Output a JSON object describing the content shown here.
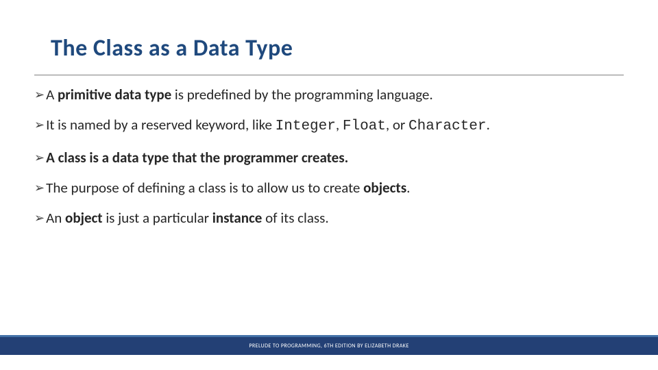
{
  "slide": {
    "title": "The Class as a Data Type",
    "title_color": "#1f497d",
    "title_fontsize": 34,
    "rule_color": "#7f7f7f",
    "body_fontsize": 21,
    "body_color": "#262626",
    "bullet_glyph": "➢",
    "bullets": [
      {
        "runs": [
          {
            "t": "A ",
            "b": false,
            "mono": false
          },
          {
            "t": "primitive data type",
            "b": true,
            "mono": false
          },
          {
            "t": " is predefined by the programming language.",
            "b": false,
            "mono": false
          }
        ]
      },
      {
        "runs": [
          {
            "t": "It is named by a reserved keyword, like ",
            "b": false,
            "mono": false
          },
          {
            "t": "Integer",
            "b": false,
            "mono": true
          },
          {
            "t": ", ",
            "b": false,
            "mono": false
          },
          {
            "t": "Float",
            "b": false,
            "mono": true
          },
          {
            "t": ", or ",
            "b": false,
            "mono": false
          },
          {
            "t": "Character",
            "b": false,
            "mono": true
          },
          {
            "t": ".",
            "b": false,
            "mono": false
          }
        ]
      },
      {
        "runs": [
          {
            "t": "A class is a data type that the programmer creates.",
            "b": true,
            "mono": false
          }
        ]
      },
      {
        "runs": [
          {
            "t": "The purpose of defining a class is to allow us to create ",
            "b": false,
            "mono": false
          },
          {
            "t": "objects",
            "b": true,
            "mono": false
          },
          {
            "t": ".",
            "b": false,
            "mono": false
          }
        ]
      },
      {
        "runs": [
          {
            "t": "An ",
            "b": false,
            "mono": false
          },
          {
            "t": "object",
            "b": true,
            "mono": false
          },
          {
            "t": " is just a particular ",
            "b": false,
            "mono": false
          },
          {
            "t": "instance",
            "b": true,
            "mono": false
          },
          {
            "t": " of its class.",
            "b": false,
            "mono": false
          }
        ]
      }
    ]
  },
  "footer": {
    "text": "PRELUDE TO PROGRAMMING, 6TH EDITION BY ELIZABETH DRAKE",
    "bar_color": "#234075",
    "accent_color": "#4472a8",
    "text_color": "#ffffff",
    "fontsize": 8
  }
}
